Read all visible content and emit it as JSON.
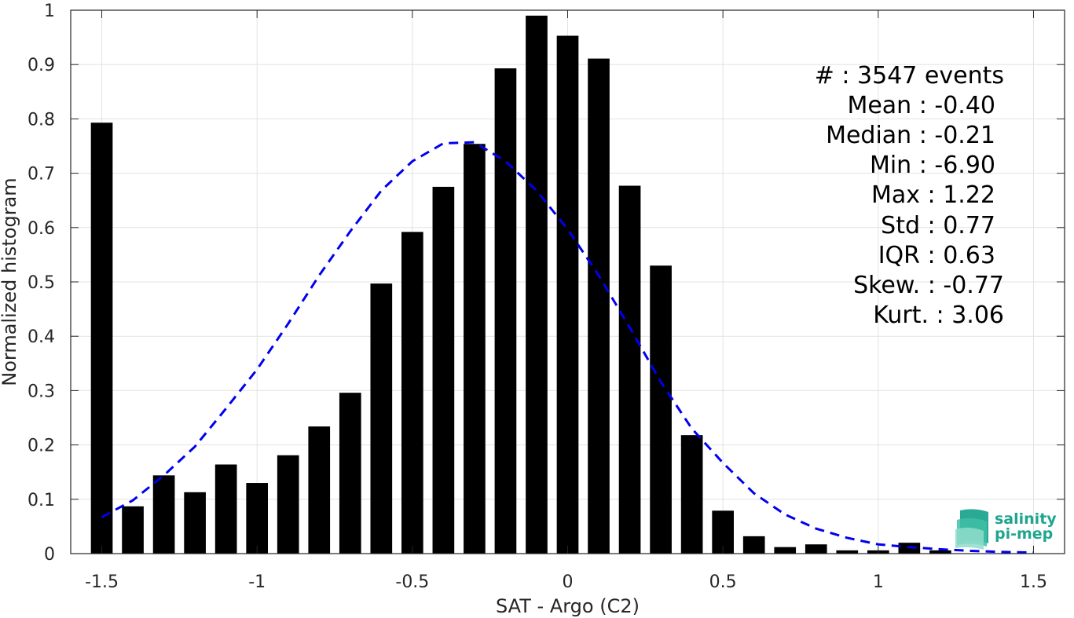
{
  "chart_data": {
    "type": "bar",
    "xlabel": "SAT - Argo (C2)",
    "ylabel": "Normalized histogram",
    "xlim": [
      -1.6,
      1.6
    ],
    "ylim": [
      0,
      1
    ],
    "xticks": [
      -1.5,
      -1,
      -0.5,
      0,
      0.5,
      1,
      1.5
    ],
    "xtick_labels": [
      "-1.5",
      "-1",
      "-0.5",
      "0",
      "0.5",
      "1",
      "1.5"
    ],
    "yticks": [
      0,
      0.1,
      0.2,
      0.3,
      0.4,
      0.5,
      0.6,
      0.7,
      0.8,
      0.9,
      1
    ],
    "ytick_labels": [
      "0",
      "0.1",
      "0.2",
      "0.3",
      "0.4",
      "0.5",
      "0.6",
      "0.7",
      "0.8",
      "0.9",
      "1"
    ],
    "grid": true,
    "bar_color": "#000000",
    "curve_color": "#0000ee",
    "bars": {
      "x": [
        -1.5,
        -1.4,
        -1.3,
        -1.2,
        -1.1,
        -1.0,
        -0.9,
        -0.8,
        -0.7,
        -0.6,
        -0.5,
        -0.4,
        -0.3,
        -0.2,
        -0.1,
        0.0,
        0.1,
        0.2,
        0.3,
        0.4,
        0.5,
        0.6,
        0.7,
        0.8,
        0.9,
        1.0,
        1.1,
        1.2
      ],
      "values": [
        0.793,
        0.087,
        0.144,
        0.113,
        0.164,
        0.13,
        0.181,
        0.234,
        0.296,
        0.497,
        0.592,
        0.675,
        0.754,
        0.893,
        0.99,
        0.953,
        0.911,
        0.677,
        0.53,
        0.218,
        0.079,
        0.032,
        0.012,
        0.017,
        0.006,
        0.006,
        0.02,
        0.006
      ],
      "width": 0.07
    },
    "fit_curve": {
      "style": "dashed",
      "x": [
        -1.5,
        -1.4,
        -1.3,
        -1.2,
        -1.1,
        -1.0,
        -0.9,
        -0.8,
        -0.7,
        -0.6,
        -0.5,
        -0.4,
        -0.3,
        -0.2,
        -0.1,
        0.0,
        0.1,
        0.2,
        0.3,
        0.4,
        0.5,
        0.6,
        0.7,
        0.8,
        0.9,
        1.0,
        1.1,
        1.2,
        1.3,
        1.4,
        1.5
      ],
      "y": [
        0.067,
        0.098,
        0.144,
        0.197,
        0.267,
        0.339,
        0.423,
        0.512,
        0.593,
        0.668,
        0.722,
        0.755,
        0.757,
        0.722,
        0.668,
        0.597,
        0.512,
        0.416,
        0.316,
        0.23,
        0.167,
        0.111,
        0.072,
        0.046,
        0.029,
        0.017,
        0.012,
        0.008,
        0.005,
        0.003,
        0.002
      ]
    }
  },
  "stats": [
    "#  : 3547 events",
    "Mean : -0.40",
    "Median : -0.21",
    "Min : -6.90",
    "Max : 1.22",
    "Std : 0.77",
    "IQR : 0.63",
    "Skew. : -0.77",
    "Kurt. : 3.06"
  ],
  "logo": {
    "line1": "salinity",
    "line2": "pi-mep",
    "color": "#1fa58e"
  }
}
